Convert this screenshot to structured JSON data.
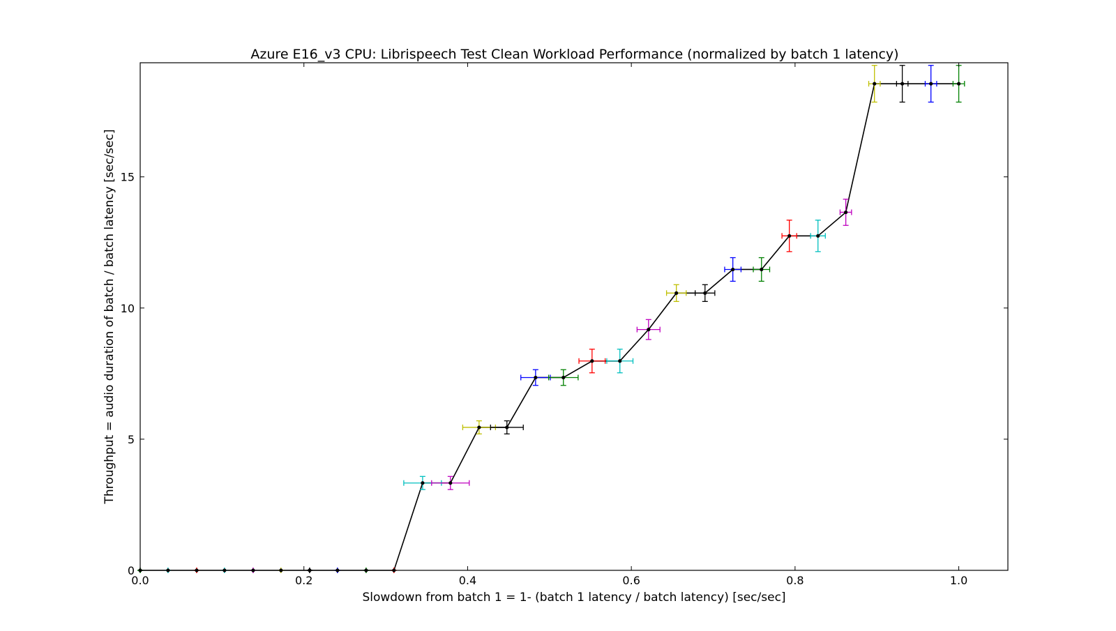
{
  "chart_data": {
    "type": "line",
    "title": "Azure E16_v3 CPU: Librispeech Test Clean Workload Performance (normalized by batch 1 latency)",
    "xlabel": "Slowdown from batch 1 = 1- (batch 1 latency / batch latency) [sec/sec]",
    "ylabel": "Throughput = audio duration of batch / batch latency [sec/sec]",
    "xlim": [
      0.0,
      1.06
    ],
    "ylim": [
      0,
      19.35
    ],
    "xticks": [
      0.0,
      0.2,
      0.4,
      0.6,
      0.8,
      1.0
    ],
    "xtick_labels": [
      "0.0",
      "0.2",
      "0.4",
      "0.6",
      "0.8",
      "1.0"
    ],
    "yticks": [
      0,
      5,
      10,
      15
    ],
    "ytick_labels": [
      "0",
      "5",
      "10",
      "15"
    ],
    "grid": false,
    "line_color": "#000000",
    "errorbar_colors": [
      "#00bfbf",
      "#bf00bf",
      "#bfbf00",
      "#000000",
      "#0000ff",
      "#008000",
      "#ff0000"
    ],
    "points": [
      {
        "x": 0.0,
        "y": 0.0,
        "xerr": 0.0,
        "yerr": 0.0,
        "color": "#008000"
      },
      {
        "x": 0.034,
        "y": 0.0,
        "xerr": 0.0,
        "yerr": 0.0,
        "color": "#00bfbf"
      },
      {
        "x": 0.069,
        "y": 0.0,
        "xerr": 0.0,
        "yerr": 0.0,
        "color": "#ff0000"
      },
      {
        "x": 0.103,
        "y": 0.0,
        "xerr": 0.0,
        "yerr": 0.0,
        "color": "#00bfbf"
      },
      {
        "x": 0.138,
        "y": 0.0,
        "xerr": 0.0,
        "yerr": 0.0,
        "color": "#bf00bf"
      },
      {
        "x": 0.172,
        "y": 0.0,
        "xerr": 0.0,
        "yerr": 0.0,
        "color": "#bfbf00"
      },
      {
        "x": 0.207,
        "y": 0.0,
        "xerr": 0.0,
        "yerr": 0.0,
        "color": "#000000"
      },
      {
        "x": 0.241,
        "y": 0.0,
        "xerr": 0.0,
        "yerr": 0.0,
        "color": "#0000ff"
      },
      {
        "x": 0.276,
        "y": 0.0,
        "xerr": 0.0,
        "yerr": 0.0,
        "color": "#008000"
      },
      {
        "x": 0.31,
        "y": 0.0,
        "xerr": 0.0,
        "yerr": 0.0,
        "color": "#ff0000"
      },
      {
        "x": 0.345,
        "y": 3.33,
        "xerr": 0.023,
        "yerr": 0.25,
        "color": "#00bfbf"
      },
      {
        "x": 0.379,
        "y": 3.33,
        "xerr": 0.023,
        "yerr": 0.25,
        "color": "#bf00bf"
      },
      {
        "x": 0.414,
        "y": 5.45,
        "xerr": 0.02,
        "yerr": 0.25,
        "color": "#bfbf00"
      },
      {
        "x": 0.448,
        "y": 5.45,
        "xerr": 0.02,
        "yerr": 0.25,
        "color": "#000000"
      },
      {
        "x": 0.483,
        "y": 7.35,
        "xerr": 0.018,
        "yerr": 0.3,
        "color": "#0000ff"
      },
      {
        "x": 0.517,
        "y": 7.35,
        "xerr": 0.018,
        "yerr": 0.3,
        "color": "#008000"
      },
      {
        "x": 0.552,
        "y": 7.98,
        "xerr": 0.016,
        "yerr": 0.45,
        "color": "#ff0000"
      },
      {
        "x": 0.586,
        "y": 7.98,
        "xerr": 0.016,
        "yerr": 0.45,
        "color": "#00bfbf"
      },
      {
        "x": 0.621,
        "y": 9.18,
        "xerr": 0.014,
        "yerr": 0.38,
        "color": "#bf00bf"
      },
      {
        "x": 0.655,
        "y": 10.57,
        "xerr": 0.012,
        "yerr": 0.32,
        "color": "#bfbf00"
      },
      {
        "x": 0.69,
        "y": 10.57,
        "xerr": 0.012,
        "yerr": 0.32,
        "color": "#000000"
      },
      {
        "x": 0.724,
        "y": 11.47,
        "xerr": 0.01,
        "yerr": 0.45,
        "color": "#0000ff"
      },
      {
        "x": 0.759,
        "y": 11.47,
        "xerr": 0.01,
        "yerr": 0.45,
        "color": "#008000"
      },
      {
        "x": 0.793,
        "y": 12.75,
        "xerr": 0.009,
        "yerr": 0.6,
        "color": "#ff0000"
      },
      {
        "x": 0.828,
        "y": 12.75,
        "xerr": 0.009,
        "yerr": 0.6,
        "color": "#00bfbf"
      },
      {
        "x": 0.862,
        "y": 13.65,
        "xerr": 0.007,
        "yerr": 0.5,
        "color": "#bf00bf"
      },
      {
        "x": 0.897,
        "y": 18.55,
        "xerr": 0.007,
        "yerr": 0.7,
        "color": "#bfbf00"
      },
      {
        "x": 0.931,
        "y": 18.55,
        "xerr": 0.007,
        "yerr": 0.7,
        "color": "#000000"
      },
      {
        "x": 0.966,
        "y": 18.55,
        "xerr": 0.007,
        "yerr": 0.7,
        "color": "#0000ff"
      },
      {
        "x": 1.0,
        "y": 18.55,
        "xerr": 0.007,
        "yerr": 0.7,
        "color": "#008000"
      }
    ]
  }
}
